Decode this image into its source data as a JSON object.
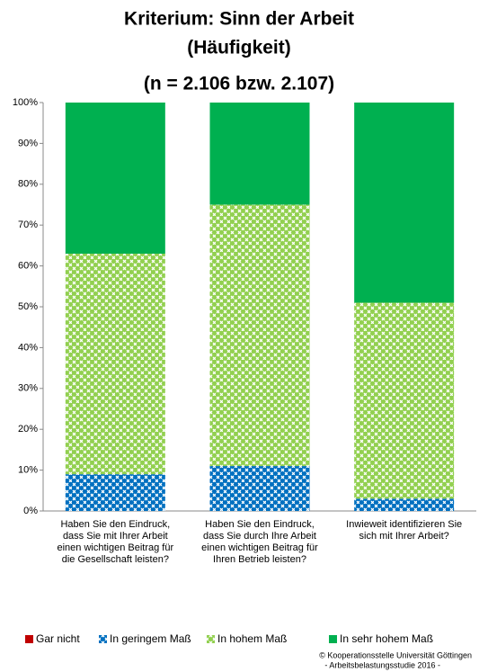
{
  "chart_data": {
    "type": "stacked_bar",
    "title": [
      "Kriterium: Sinn der Arbeit",
      "(Häufigkeit)",
      "(n = 2.106 bzw. 2.107)"
    ],
    "categories": [
      "Haben Sie den Eindruck, dass Sie mit Ihrer Arbeit einen wichtigen Beitrag für die Gesellschaft leisten?",
      "Haben Sie den Eindruck, dass Sie durch Ihre Arbeit einen wichtigen Beitrag für Ihren Betrieb leisten?",
      "Inwieweit identifizieren Sie sich mit Ihrer Arbeit?"
    ],
    "series": [
      {
        "name": "Gar nicht",
        "color": "#c00000",
        "pattern": false,
        "values": [
          0,
          0,
          0
        ]
      },
      {
        "name": "In geringem Maß",
        "color": "#0070c0",
        "pattern": true,
        "values": [
          9,
          11,
          3
        ]
      },
      {
        "name": "In hohem Maß",
        "color": "#92d050",
        "pattern": true,
        "values": [
          54,
          64,
          48
        ]
      },
      {
        "name": "In sehr hohem Maß",
        "color": "#00b050",
        "pattern": false,
        "values": [
          37,
          25,
          49
        ]
      }
    ],
    "ylim": [
      0,
      100
    ],
    "yticks": [
      {
        "value": 0,
        "label": "0%"
      },
      {
        "value": 10,
        "label": "10%"
      },
      {
        "value": 20,
        "label": "20%"
      },
      {
        "value": 30,
        "label": "30%"
      },
      {
        "value": 40,
        "label": "40%"
      },
      {
        "value": 50,
        "label": "50%"
      },
      {
        "value": 60,
        "label": "60%"
      },
      {
        "value": 70,
        "label": "70%"
      },
      {
        "value": 80,
        "label": "80%"
      },
      {
        "value": 90,
        "label": "90%"
      },
      {
        "value": 100,
        "label": "100%"
      }
    ],
    "legend": "bottom",
    "source": [
      "© Kooperationsstelle Universität Göttingen",
      "- Arbeitsbelastungsstudie 2016 -"
    ]
  }
}
